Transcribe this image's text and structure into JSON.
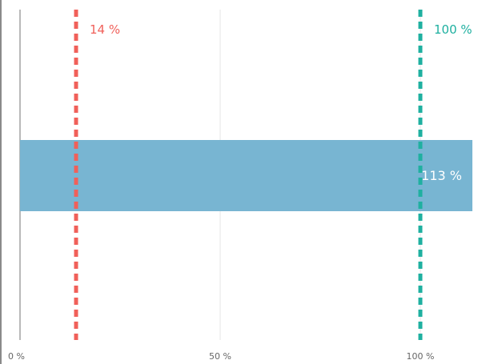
{
  "chart_data": {
    "type": "bar",
    "orientation": "horizontal",
    "categories": [
      ""
    ],
    "values": [
      113
    ],
    "data_label": "113 %",
    "xlim": [
      0,
      113
    ],
    "x_ticks": [
      0,
      50,
      100
    ],
    "x_tick_labels": [
      "0 %",
      "50 %",
      "100 %"
    ],
    "grid": true,
    "reference_lines": [
      {
        "value": 14,
        "label": "14 %",
        "color": "#f0605a",
        "style": "dashed"
      },
      {
        "value": 100,
        "label": "100 %",
        "color": "#1fb0a0",
        "style": "dashed"
      }
    ],
    "bar_color": "#78b5d2",
    "data_label_color": "#ffffff",
    "axis_color": "#b9b9b9",
    "grid_color": "#e6e6e6",
    "tick_label_color": "#666666"
  }
}
